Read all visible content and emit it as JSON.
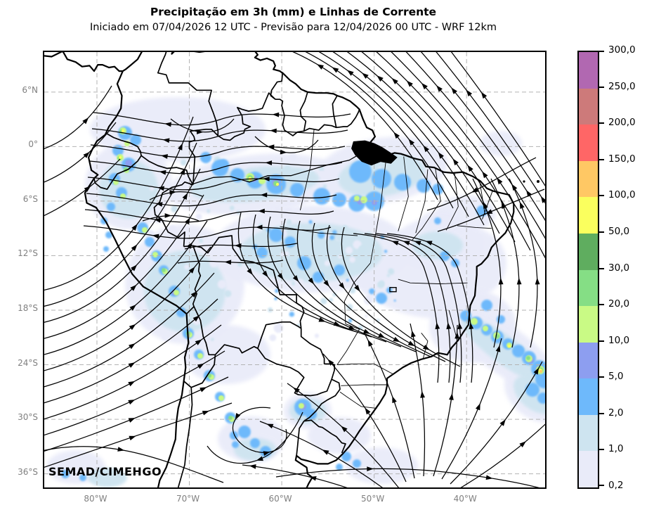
{
  "header": {
    "title": "Precipitação em 3h (mm) e Linhas de Corrente",
    "subtitle": "Iniciado em 07/04/2026 12 UTC - Previsão para 12/04/2026 00 UTC - WRF 12km"
  },
  "map": {
    "watermark": "SEMAD/CIMEHGO",
    "lat_tick_labels": [
      "6°N",
      "0°",
      "6°S",
      "12°S",
      "18°S",
      "24°S",
      "30°S",
      "36°S"
    ],
    "lat_tick_degrees": [
      6,
      0,
      -6,
      -12,
      -18,
      -24,
      -30,
      -36
    ],
    "lon_tick_labels": [
      "80°W",
      "70°W",
      "60°W",
      "50°W",
      "40°W"
    ],
    "lon_tick_degrees": [
      -80,
      -70,
      -60,
      -50,
      -40
    ]
  },
  "colorbar": {
    "tick_labels_top_to_bottom": [
      "300,0",
      "250,0",
      "200,0",
      "150,0",
      "100,0",
      "50,0",
      "30,0",
      "20,0",
      "10,0",
      "5,0",
      "2,0",
      "1,0",
      "0,2"
    ],
    "band_colors_top_to_bottom": [
      "#b168b1",
      "#cd7a7a",
      "#ff6666",
      "#ffc864",
      "#faff5e",
      "#5fad5f",
      "#85de85",
      "#c9fa85",
      "#8d9ef0",
      "#6eb9fb",
      "#cee4f0",
      "#e9ebf9"
    ]
  },
  "styles": {
    "grid_color": "#b3b3b3",
    "axis_label_color": "#808080",
    "stream_color": "#000000",
    "coast_color": "#000000",
    "background": "#ffffff"
  }
}
